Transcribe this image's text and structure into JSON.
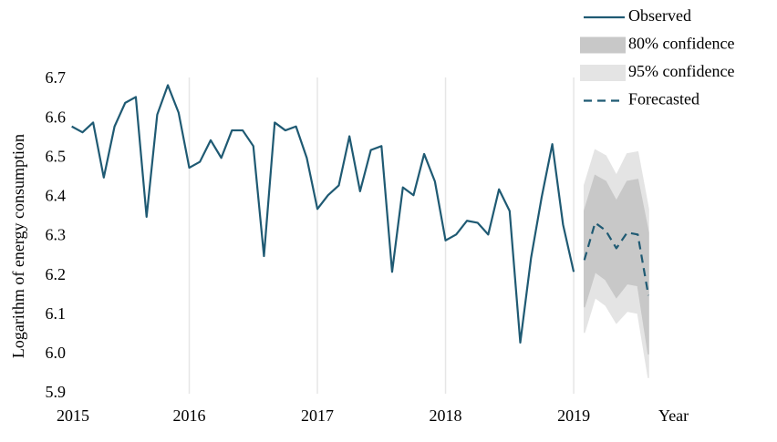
{
  "chart_data": {
    "type": "line",
    "y_label": "Logarithm of energy consumption",
    "x_label": "Year",
    "xlim": [
      2015,
      2019.583
    ],
    "xticks": [
      2015,
      2016,
      2017,
      2018,
      2019
    ],
    "ylim": [
      5.9,
      6.7
    ],
    "yticks": [
      {
        "value": 5.9,
        "label": "5.9"
      },
      {
        "value": 6.0,
        "label": "6.0"
      },
      {
        "value": 6.1,
        "label": "6.1"
      },
      {
        "value": 6.2,
        "label": "6.2"
      },
      {
        "value": 6.3,
        "label": "6.3"
      },
      {
        "value": 6.4,
        "label": "6.4"
      },
      {
        "value": 6.5,
        "label": "6.5"
      },
      {
        "value": 6.6,
        "label": "6.6"
      },
      {
        "value": 6.7,
        "label": "6.7"
      }
    ],
    "grid": true,
    "legend": "top-right",
    "series": [
      {
        "name": "Observed",
        "color": "#1f5a73",
        "style": "solid",
        "x": [
          2015.083,
          2015.167,
          2015.25,
          2015.333,
          2015.417,
          2015.5,
          2015.583,
          2015.667,
          2015.75,
          2015.833,
          2015.917,
          2016,
          2016.083,
          2016.167,
          2016.25,
          2016.333,
          2016.417,
          2016.5,
          2016.583,
          2016.667,
          2016.75,
          2016.833,
          2016.917,
          2017,
          2017.083,
          2017.167,
          2017.25,
          2017.333,
          2017.417,
          2017.5,
          2017.583,
          2017.667,
          2017.75,
          2017.833,
          2017.917,
          2018,
          2018.083,
          2018.167,
          2018.25,
          2018.333,
          2018.417,
          2018.5,
          2018.583,
          2018.667,
          2018.75,
          2018.833,
          2018.917,
          2019
        ],
        "values": [
          6.58,
          6.565,
          6.59,
          6.45,
          6.58,
          6.64,
          6.655,
          6.35,
          6.61,
          6.685,
          6.615,
          6.475,
          6.49,
          6.545,
          6.5,
          6.57,
          6.57,
          6.53,
          6.25,
          6.59,
          6.57,
          6.58,
          6.5,
          6.37,
          6.405,
          6.43,
          6.555,
          6.415,
          6.52,
          6.53,
          6.21,
          6.425,
          6.405,
          6.51,
          6.44,
          6.29,
          6.305,
          6.34,
          6.335,
          6.305,
          6.42,
          6.365,
          6.03,
          6.245,
          6.4,
          6.535,
          6.33,
          6.21
        ]
      },
      {
        "name": "80% confidence",
        "color": "#c8c8c8",
        "style": "band",
        "x": [
          2019.083,
          2019.167,
          2019.25,
          2019.333,
          2019.417,
          2019.5,
          2019.583
        ],
        "lower": [
          6.12,
          6.21,
          6.19,
          6.145,
          6.18,
          6.175,
          6.0
        ],
        "upper": [
          6.365,
          6.455,
          6.44,
          6.39,
          6.44,
          6.445,
          6.31
        ]
      },
      {
        "name": "95% confidence",
        "color": "#e4e4e4",
        "style": "band",
        "x": [
          2019.083,
          2019.167,
          2019.25,
          2019.333,
          2019.417,
          2019.5,
          2019.583
        ],
        "lower": [
          6.055,
          6.145,
          6.125,
          6.08,
          6.11,
          6.105,
          5.94
        ],
        "upper": [
          6.43,
          6.52,
          6.505,
          6.455,
          6.51,
          6.515,
          6.37
        ]
      },
      {
        "name": "Forecasted",
        "color": "#1f5a73",
        "style": "dashed",
        "x": [
          2019.083,
          2019.167,
          2019.25,
          2019.333,
          2019.417,
          2019.5,
          2019.583
        ],
        "values": [
          6.24,
          6.335,
          6.315,
          6.27,
          6.31,
          6.305,
          6.15
        ]
      }
    ]
  }
}
